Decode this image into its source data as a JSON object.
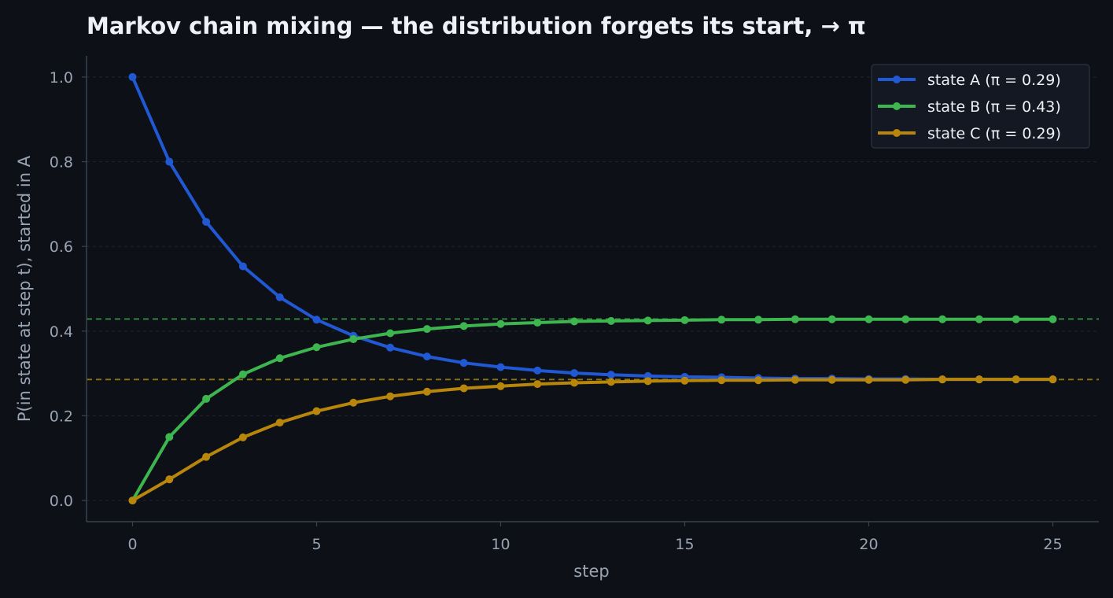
{
  "chart_data": {
    "type": "line",
    "title": "Markov chain mixing — the distribution forgets its start, → π",
    "xlabel": "step",
    "ylabel": "P(in state at step t), started in A",
    "xlim": [
      -1.25,
      26.25
    ],
    "ylim": [
      -0.05,
      1.05
    ],
    "xticks": [
      0,
      5,
      10,
      15,
      20,
      25
    ],
    "yticks": [
      0.0,
      0.2,
      0.4,
      0.6,
      0.8,
      1.0
    ],
    "ytick_labels": [
      "0.0",
      "0.2",
      "0.4",
      "0.6",
      "0.8",
      "1.0"
    ],
    "grid": "horizontal, dashed",
    "legend": "top-right",
    "x": [
      0,
      1,
      2,
      3,
      4,
      5,
      6,
      7,
      8,
      9,
      10,
      11,
      12,
      13,
      14,
      15,
      16,
      17,
      18,
      19,
      20,
      21,
      22,
      23,
      24,
      25
    ],
    "series": [
      {
        "name": "state A (π = 0.29)",
        "color": "#2158d4",
        "values": [
          1.0,
          0.8,
          0.658,
          0.553,
          0.48,
          0.427,
          0.389,
          0.361,
          0.34,
          0.325,
          0.315,
          0.307,
          0.301,
          0.297,
          0.294,
          0.292,
          0.291,
          0.289,
          0.288,
          0.288,
          0.287,
          0.287,
          0.286,
          0.286,
          0.286,
          0.286
        ]
      },
      {
        "name": "state B (π = 0.43)",
        "color": "#3db64f",
        "values": [
          0.0,
          0.15,
          0.24,
          0.298,
          0.336,
          0.362,
          0.381,
          0.395,
          0.405,
          0.412,
          0.417,
          0.42,
          0.423,
          0.424,
          0.425,
          0.426,
          0.427,
          0.427,
          0.428,
          0.428,
          0.428,
          0.428,
          0.428,
          0.428,
          0.428,
          0.428
        ]
      },
      {
        "name": "state C (π = 0.29)",
        "color": "#b8860b",
        "values": [
          0.0,
          0.05,
          0.103,
          0.149,
          0.184,
          0.211,
          0.231,
          0.246,
          0.257,
          0.265,
          0.27,
          0.275,
          0.278,
          0.28,
          0.282,
          0.283,
          0.284,
          0.284,
          0.285,
          0.285,
          0.285,
          0.285,
          0.286,
          0.286,
          0.286,
          0.286
        ]
      }
    ],
    "reference_lines": [
      {
        "y": 0.4286,
        "color": "#3db64f"
      },
      {
        "y": 0.2857,
        "color": "#b8960b"
      }
    ],
    "colors": {
      "background": "#0d1017",
      "grid": "#1f2530",
      "axis": "#3a4250",
      "text": "#eef1f6",
      "muted_text": "#9aa3b2",
      "legend_bg": "#131822",
      "legend_border": "#2c3340"
    }
  }
}
